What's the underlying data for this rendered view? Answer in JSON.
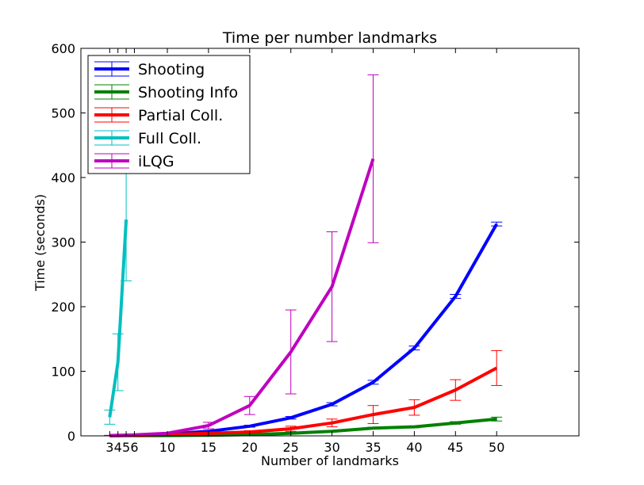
{
  "chart_data": {
    "type": "line",
    "title": "Time per number landmarks",
    "xlabel": "Number of landmarks",
    "ylabel": "Time (seconds)",
    "xlim": [
      -0.5,
      60
    ],
    "ylim": [
      0,
      600
    ],
    "xticks": [
      {
        "value": 3,
        "label": "3"
      },
      {
        "value": 4,
        "label": "4"
      },
      {
        "value": 5,
        "label": "5"
      },
      {
        "value": 6,
        "label": "6"
      },
      {
        "value": 10,
        "label": "10"
      },
      {
        "value": 15,
        "label": "15"
      },
      {
        "value": 20,
        "label": "20"
      },
      {
        "value": 25,
        "label": "25"
      },
      {
        "value": 30,
        "label": "30"
      },
      {
        "value": 35,
        "label": "35"
      },
      {
        "value": 40,
        "label": "40"
      },
      {
        "value": 45,
        "label": "45"
      },
      {
        "value": 50,
        "label": "50"
      }
    ],
    "yticks": [
      0,
      100,
      200,
      300,
      400,
      500,
      600
    ],
    "grid": false,
    "legend_position": "top-left",
    "series": [
      {
        "name": "Shooting",
        "color": "#0000ff",
        "x": [
          3,
          4,
          5,
          6,
          10,
          15,
          20,
          25,
          30,
          35,
          40,
          45,
          50
        ],
        "y": [
          0.3,
          0.5,
          0.8,
          1.0,
          3,
          7,
          15,
          28,
          49,
          83,
          136,
          216,
          328
        ],
        "err": [
          0.2,
          0.2,
          0.3,
          0.3,
          0.5,
          1,
          1.5,
          2,
          2.5,
          3,
          3,
          3,
          3
        ]
      },
      {
        "name": "Shooting Info",
        "color": "#008000",
        "x": [
          3,
          4,
          5,
          6,
          10,
          15,
          20,
          25,
          30,
          35,
          40,
          45,
          50
        ],
        "y": [
          0.1,
          0.1,
          0.2,
          0.2,
          0.5,
          1,
          2,
          4,
          7,
          12,
          14,
          20,
          26
        ],
        "err": [
          0.1,
          0.1,
          0.1,
          0.1,
          0.2,
          0.3,
          0.5,
          0.7,
          1,
          1.5,
          1.5,
          2,
          3
        ]
      },
      {
        "name": "Partial Coll.",
        "color": "#ff0000",
        "x": [
          3,
          4,
          5,
          6,
          10,
          15,
          20,
          25,
          30,
          35,
          40,
          45,
          50
        ],
        "y": [
          0.3,
          0.5,
          0.8,
          1.0,
          2,
          4,
          6,
          11,
          20,
          33,
          44,
          71,
          105
        ],
        "err": [
          0.2,
          0.2,
          0.3,
          0.3,
          0.5,
          1,
          2,
          4,
          6,
          14,
          12,
          16,
          27
        ]
      },
      {
        "name": "Full Coll.",
        "color": "#00bfbf",
        "x": [
          3,
          4,
          5
        ],
        "y": [
          29,
          114,
          335
        ],
        "err": [
          11,
          44,
          95
        ]
      },
      {
        "name": "iLQG",
        "color": "#bf00bf",
        "x": [
          3,
          4,
          5,
          6,
          10,
          15,
          20,
          25,
          30,
          35
        ],
        "y": [
          0.5,
          0.8,
          1.0,
          1.5,
          4,
          16,
          47,
          130,
          231,
          429
        ],
        "err": [
          0.3,
          0.3,
          0.4,
          0.5,
          1,
          5,
          14,
          65,
          85,
          130
        ]
      }
    ]
  }
}
